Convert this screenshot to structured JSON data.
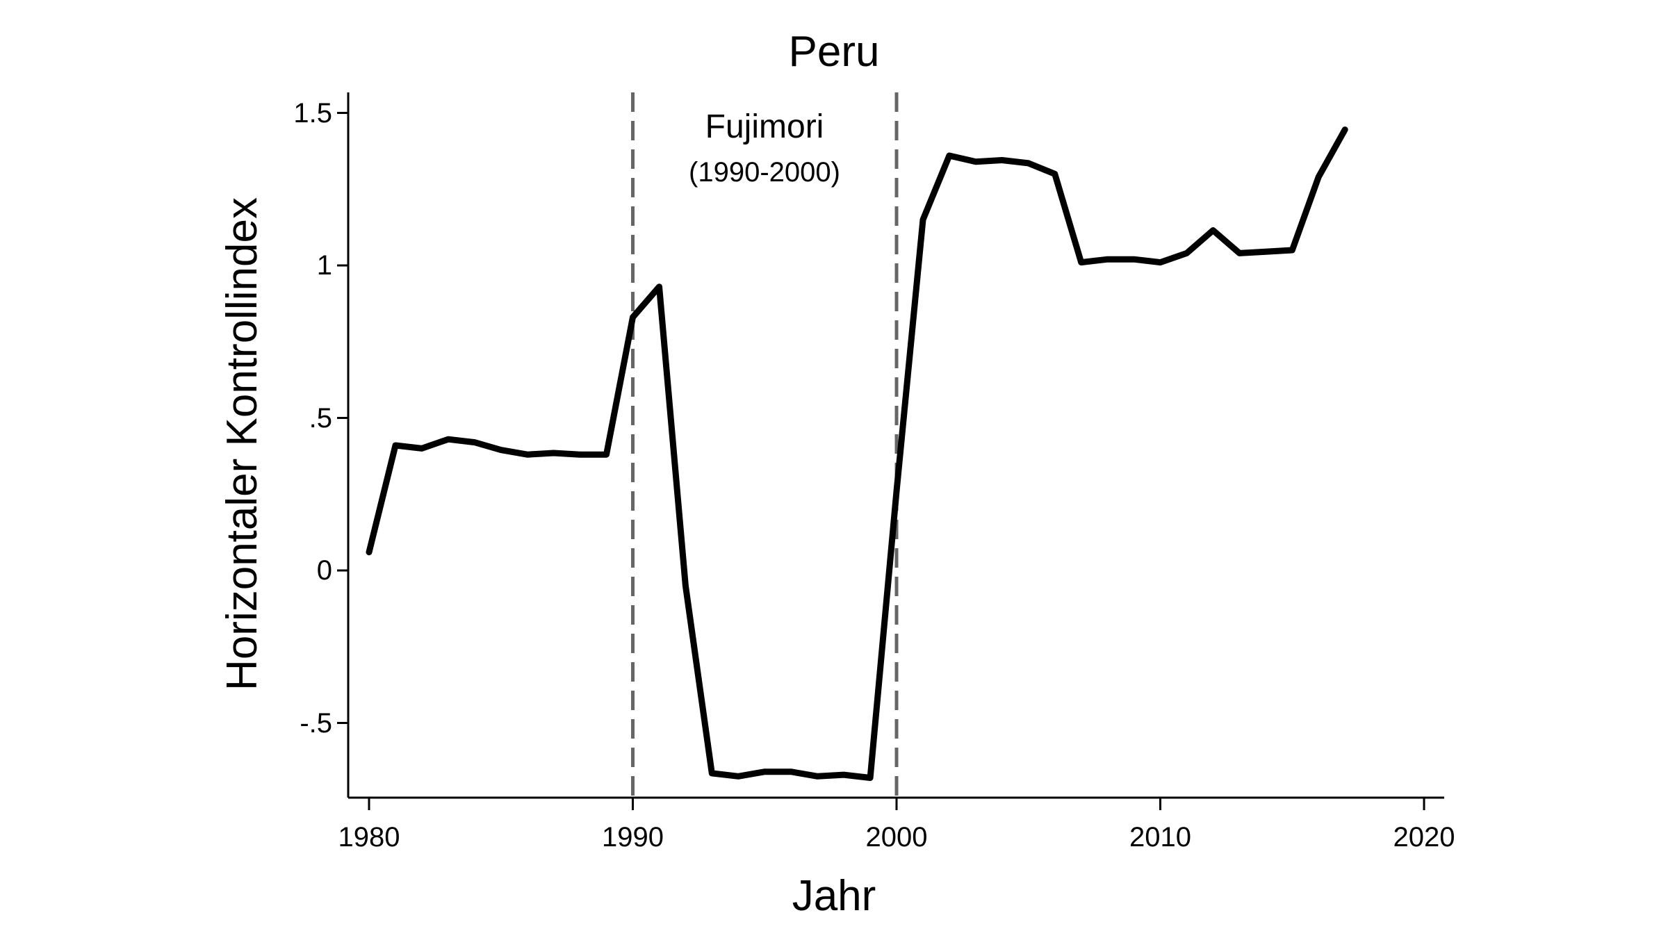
{
  "chart_data": {
    "type": "line",
    "title": "Peru",
    "xlabel": "Jahr",
    "ylabel": "Horizontaler Kontrollindex",
    "xlim": [
      1979.2,
      2020.8
    ],
    "ylim": [
      -0.74,
      1.56
    ],
    "grid": false,
    "legend": null,
    "x_ticks": [
      1980,
      1990,
      2000,
      2010,
      2020
    ],
    "x_tick_labels": [
      "1980",
      "1990",
      "2000",
      "2010",
      "2020"
    ],
    "y_ticks": [
      1.5,
      1,
      0.5,
      0,
      -0.5
    ],
    "y_tick_labels": [
      "1.5",
      "1",
      ".5",
      "0",
      "-.5"
    ],
    "series": [
      {
        "name": "Horizontaler Kontrollindex",
        "color": "#000000",
        "x": [
          1980,
          1981,
          1982,
          1983,
          1984,
          1985,
          1986,
          1987,
          1988,
          1989,
          1990,
          1991,
          1992,
          1993,
          1994,
          1995,
          1996,
          1997,
          1998,
          1999,
          2000,
          2001,
          2002,
          2003,
          2004,
          2005,
          2006,
          2007,
          2008,
          2009,
          2010,
          2011,
          2012,
          2013,
          2014,
          2015,
          2016,
          2017
        ],
        "values": [
          0.06,
          0.41,
          0.4,
          0.43,
          0.42,
          0.395,
          0.38,
          0.385,
          0.38,
          0.38,
          0.83,
          0.93,
          -0.05,
          -0.665,
          -0.675,
          -0.66,
          -0.66,
          -0.675,
          -0.67,
          -0.68,
          0.26,
          1.15,
          1.36,
          1.34,
          1.345,
          1.335,
          1.3,
          1.01,
          1.02,
          1.02,
          1.01,
          1.04,
          1.115,
          1.04,
          1.045,
          1.05,
          1.29,
          1.445
        ]
      }
    ],
    "annotations": [
      {
        "type": "vline",
        "x": 1990,
        "style": "dashed",
        "color": "#666666"
      },
      {
        "type": "vline",
        "x": 2000,
        "style": "dashed",
        "color": "#666666"
      },
      {
        "type": "text",
        "text": "Fujimori",
        "x": 1995,
        "y": 1.44
      },
      {
        "type": "text",
        "text": "(1990-2000)",
        "x": 1995,
        "y": 1.3
      }
    ]
  },
  "labels": {
    "title": "Peru",
    "xlabel": "Jahr",
    "ylabel": "Horizontaler Kontrollindex",
    "annotation_name": "Fujimori",
    "annotation_period": "(1990-2000)"
  }
}
